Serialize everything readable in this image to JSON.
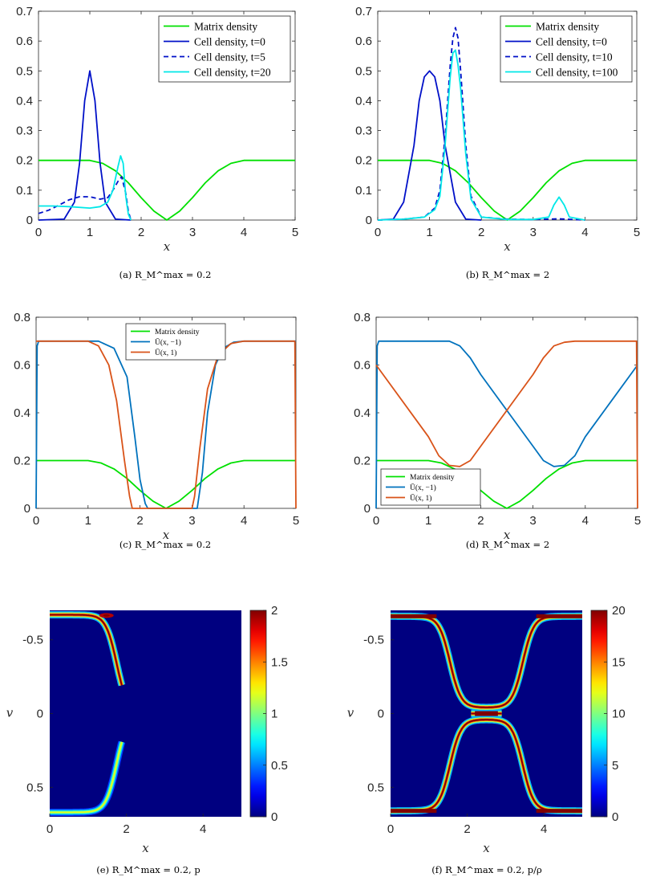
{
  "chart_data": [
    {
      "type": "line",
      "id": "a",
      "caption": "(a) R_M^max = 0.2",
      "xlabel": "x",
      "ylabel": "",
      "xlim": [
        0,
        5
      ],
      "ylim": [
        0,
        0.7
      ],
      "xticks": [
        "0",
        "1",
        "2",
        "3",
        "4",
        "5"
      ],
      "yticks": [
        "0",
        "0.1",
        "0.2",
        "0.3",
        "0.4",
        "0.5",
        "0.6",
        "0.7"
      ],
      "legend": {
        "placement": "top-right",
        "entries": [
          "Matrix density",
          "Cell density, t=0",
          "Cell density, t=5",
          "Cell density, t=20"
        ]
      },
      "series": [
        {
          "name": "Matrix density",
          "color": "#00e000",
          "style": "solid",
          "x": [
            0,
            1,
            1.25,
            1.5,
            1.75,
            2,
            2.25,
            2.5,
            2.75,
            3,
            3.25,
            3.5,
            3.75,
            4,
            5
          ],
          "y": [
            0.2,
            0.2,
            0.19,
            0.165,
            0.125,
            0.075,
            0.03,
            0.0,
            0.03,
            0.075,
            0.125,
            0.165,
            0.19,
            0.2,
            0.2
          ]
        },
        {
          "name": "Cell density, t=0",
          "color": "#0010c8",
          "style": "solid",
          "x": [
            0,
            0.5,
            0.7,
            0.8,
            0.9,
            1.0,
            1.1,
            1.2,
            1.3,
            1.5,
            1.8
          ],
          "y": [
            0,
            0.003,
            0.06,
            0.19,
            0.4,
            0.5,
            0.4,
            0.19,
            0.06,
            0.003,
            0
          ]
        },
        {
          "name": "Cell density, t=5",
          "color": "#0010c8",
          "style": "dashed",
          "x": [
            0,
            0.2,
            0.4,
            0.6,
            0.8,
            1.0,
            1.2,
            1.35,
            1.45,
            1.55,
            1.62,
            1.7,
            1.75,
            1.8
          ],
          "y": [
            0.022,
            0.033,
            0.05,
            0.068,
            0.078,
            0.078,
            0.07,
            0.075,
            0.1,
            0.13,
            0.145,
            0.09,
            0.03,
            0.0
          ]
        },
        {
          "name": "Cell density, t=20",
          "color": "#00e8e8",
          "style": "solid",
          "x": [
            0,
            0.3,
            0.6,
            1.0,
            1.2,
            1.35,
            1.45,
            1.55,
            1.6,
            1.65,
            1.7,
            1.75,
            1.8
          ],
          "y": [
            0.047,
            0.047,
            0.045,
            0.04,
            0.045,
            0.06,
            0.1,
            0.18,
            0.215,
            0.19,
            0.08,
            0.02,
            0.0
          ]
        }
      ]
    },
    {
      "type": "line",
      "id": "b",
      "caption": "(b) R_M^max = 2",
      "xlabel": "x",
      "ylabel": "",
      "xlim": [
        0,
        5
      ],
      "ylim": [
        0,
        0.7
      ],
      "xticks": [
        "0",
        "1",
        "2",
        "3",
        "4",
        "5"
      ],
      "yticks": [
        "0",
        "0.1",
        "0.2",
        "0.3",
        "0.4",
        "0.5",
        "0.6",
        "0.7"
      ],
      "legend": {
        "placement": "top-right",
        "entries": [
          "Matrix density",
          "Cell density, t=0",
          "Cell density, t=10",
          "Cell density, t=100"
        ]
      },
      "series": [
        {
          "name": "Matrix density",
          "color": "#00e000",
          "style": "solid",
          "x": [
            0,
            1,
            1.25,
            1.5,
            1.75,
            2,
            2.25,
            2.5,
            2.75,
            3,
            3.25,
            3.5,
            3.75,
            4,
            5
          ],
          "y": [
            0.2,
            0.2,
            0.19,
            0.165,
            0.125,
            0.075,
            0.03,
            0.0,
            0.03,
            0.075,
            0.125,
            0.165,
            0.19,
            0.2,
            0.2
          ]
        },
        {
          "name": "Cell density, t=0",
          "color": "#0010c8",
          "style": "solid",
          "x": [
            0,
            0.3,
            0.5,
            0.7,
            0.8,
            0.9,
            1.0,
            1.1,
            1.2,
            1.3,
            1.5,
            1.7,
            2.0
          ],
          "y": [
            0,
            0.003,
            0.06,
            0.25,
            0.4,
            0.48,
            0.5,
            0.48,
            0.4,
            0.25,
            0.06,
            0.003,
            0
          ]
        },
        {
          "name": "Cell density, t=10",
          "color": "#0010c8",
          "style": "dashed",
          "x": [
            0,
            0.5,
            0.9,
            1.1,
            1.2,
            1.3,
            1.4,
            1.45,
            1.5,
            1.55,
            1.6,
            1.7,
            1.8,
            2.0,
            2.5,
            3.0,
            3.5,
            4.0
          ],
          "y": [
            0,
            0.003,
            0.01,
            0.04,
            0.1,
            0.28,
            0.52,
            0.61,
            0.645,
            0.61,
            0.5,
            0.25,
            0.08,
            0.01,
            0.003,
            0.002,
            0.004,
            0.0
          ]
        },
        {
          "name": "Cell density, t=100",
          "color": "#00e8e8",
          "style": "solid",
          "x": [
            0,
            0.5,
            0.9,
            1.1,
            1.2,
            1.3,
            1.4,
            1.45,
            1.5,
            1.55,
            1.6,
            1.7,
            1.8,
            2.0,
            2.5,
            3.0,
            3.3,
            3.4,
            3.5,
            3.6,
            3.7,
            4.0
          ],
          "y": [
            0,
            0.003,
            0.01,
            0.035,
            0.08,
            0.25,
            0.48,
            0.56,
            0.57,
            0.52,
            0.44,
            0.22,
            0.07,
            0.01,
            0.002,
            0.002,
            0.01,
            0.05,
            0.077,
            0.05,
            0.01,
            0.0
          ]
        }
      ]
    },
    {
      "type": "line",
      "id": "c",
      "caption": "(c) R_M^max = 0.2",
      "xlabel": "x",
      "ylabel": "",
      "xlim": [
        0,
        5
      ],
      "ylim": [
        0,
        0.8
      ],
      "xticks": [
        "0",
        "1",
        "2",
        "3",
        "4",
        "5"
      ],
      "yticks": [
        "0",
        "0.2",
        "0.4",
        "0.6",
        "0.8"
      ],
      "legend": {
        "placement": "top-center",
        "entries": [
          "Matrix density",
          "Ū(x, −1)",
          "Ū(x, 1)"
        ]
      },
      "series": [
        {
          "name": "Matrix density",
          "color": "#00e000",
          "style": "solid",
          "x": [
            0,
            1,
            1.25,
            1.5,
            1.75,
            2,
            2.25,
            2.5,
            2.75,
            3,
            3.25,
            3.5,
            3.75,
            4,
            5
          ],
          "y": [
            0.2,
            0.2,
            0.19,
            0.165,
            0.125,
            0.075,
            0.03,
            0.0,
            0.03,
            0.075,
            0.125,
            0.165,
            0.19,
            0.2,
            0.2
          ]
        },
        {
          "name": "Ū(x, −1)",
          "color": "#0072bd",
          "style": "solid",
          "x": [
            0,
            0.02,
            0.05,
            1.2,
            1.5,
            1.75,
            1.9,
            2.0,
            2.1,
            2.15,
            2.9,
            3.1,
            3.2,
            3.3,
            3.45,
            3.6,
            3.8,
            4.0,
            4.98,
            5.0
          ],
          "y": [
            0,
            0.68,
            0.7,
            0.7,
            0.67,
            0.55,
            0.3,
            0.12,
            0.02,
            0,
            0,
            0.0,
            0.15,
            0.4,
            0.6,
            0.67,
            0.695,
            0.7,
            0.7,
            0.7
          ]
        },
        {
          "name": "Ū(x, 1)",
          "color": "#d95319",
          "style": "solid",
          "x": [
            0,
            0.02,
            1.0,
            1.2,
            1.4,
            1.55,
            1.7,
            1.8,
            1.85,
            3.0,
            3.05,
            3.15,
            3.3,
            3.5,
            3.75,
            4.0,
            4.98,
            5.0
          ],
          "y": [
            0.7,
            0.7,
            0.7,
            0.68,
            0.6,
            0.45,
            0.2,
            0.05,
            0,
            0,
            0.05,
            0.25,
            0.5,
            0.64,
            0.69,
            0.7,
            0.7,
            0
          ]
        }
      ]
    },
    {
      "type": "line",
      "id": "d",
      "caption": "(d) R_M^max = 2",
      "xlabel": "x",
      "ylabel": "",
      "xlim": [
        0,
        5
      ],
      "ylim": [
        0,
        0.8
      ],
      "xticks": [
        "0",
        "1",
        "2",
        "3",
        "4",
        "5"
      ],
      "yticks": [
        "0",
        "0.2",
        "0.4",
        "0.6",
        "0.8"
      ],
      "legend": {
        "placement": "bottom-left",
        "entries": [
          "Matrix density",
          "Ū(x, −1)",
          "Ū(x, 1)"
        ]
      },
      "series": [
        {
          "name": "Matrix density",
          "color": "#00e000",
          "style": "solid",
          "x": [
            0,
            1,
            1.25,
            1.5,
            1.75,
            2,
            2.25,
            2.5,
            2.75,
            3,
            3.25,
            3.5,
            3.75,
            4,
            5
          ],
          "y": [
            0.2,
            0.2,
            0.19,
            0.165,
            0.125,
            0.075,
            0.03,
            0.0,
            0.03,
            0.075,
            0.125,
            0.165,
            0.19,
            0.2,
            0.2
          ]
        },
        {
          "name": "Ū(x, −1)",
          "color": "#0072bd",
          "style": "solid",
          "x": [
            0,
            0.02,
            0.05,
            1.4,
            1.6,
            1.8,
            2.0,
            3.0,
            3.2,
            3.4,
            3.6,
            3.8,
            4.0,
            5.0
          ],
          "y": [
            0,
            0.68,
            0.7,
            0.7,
            0.68,
            0.63,
            0.56,
            0.26,
            0.2,
            0.175,
            0.18,
            0.22,
            0.3,
            0.6
          ]
        },
        {
          "name": "Ū(x, 1)",
          "color": "#d95319",
          "style": "solid",
          "x": [
            0,
            1.0,
            1.2,
            1.4,
            1.6,
            1.8,
            2.0,
            3.0,
            3.2,
            3.4,
            3.6,
            3.8,
            4.98,
            5.0
          ],
          "y": [
            0.6,
            0.3,
            0.22,
            0.18,
            0.175,
            0.2,
            0.26,
            0.56,
            0.63,
            0.68,
            0.695,
            0.7,
            0.7,
            0
          ]
        }
      ]
    },
    {
      "type": "heatmap",
      "id": "e",
      "caption": "(e) R_M^max = 0.2, p",
      "xlabel": "x",
      "ylabel": "v",
      "xlim": [
        0,
        5
      ],
      "ylim": [
        -0.7,
        0.7
      ],
      "xticks": [
        "0",
        "2",
        "4"
      ],
      "yticks": [
        "-0.5",
        "0",
        "0.5"
      ],
      "colorbar": {
        "min": 0,
        "max": 2,
        "ticks": [
          "0",
          "0.5",
          "1",
          "1.5",
          "2"
        ],
        "colormap": "jet"
      },
      "bands": [
        {
          "branch": "top",
          "x_center": 1.55,
          "x_end": 1.9,
          "peak": 2.0
        },
        {
          "branch": "bottom",
          "x_center": 1.55,
          "x_end": 1.9,
          "peak": 1.2
        }
      ]
    },
    {
      "type": "heatmap",
      "id": "f",
      "caption": "(f) R_M^max = 0.2, p/ρ",
      "xlabel": "x",
      "ylabel": "v",
      "xlim": [
        0,
        5
      ],
      "ylim": [
        -0.7,
        0.7
      ],
      "xticks": [
        "0",
        "2",
        "4"
      ],
      "yticks": [
        "-0.5",
        "0",
        "0.5"
      ],
      "colorbar": {
        "min": 0,
        "max": 20,
        "ticks": [
          "0",
          "5",
          "10",
          "15",
          "20"
        ],
        "colormap": "jet"
      },
      "bands": [
        {
          "branch": "top",
          "x_left": 1.7,
          "x_right": 3.3,
          "peak": 20
        },
        {
          "branch": "bottom",
          "x_left": 1.7,
          "x_right": 3.3,
          "peak": 20
        },
        {
          "branch": "center",
          "x_left": 2.1,
          "x_right": 2.9,
          "peak": 20
        }
      ]
    }
  ]
}
